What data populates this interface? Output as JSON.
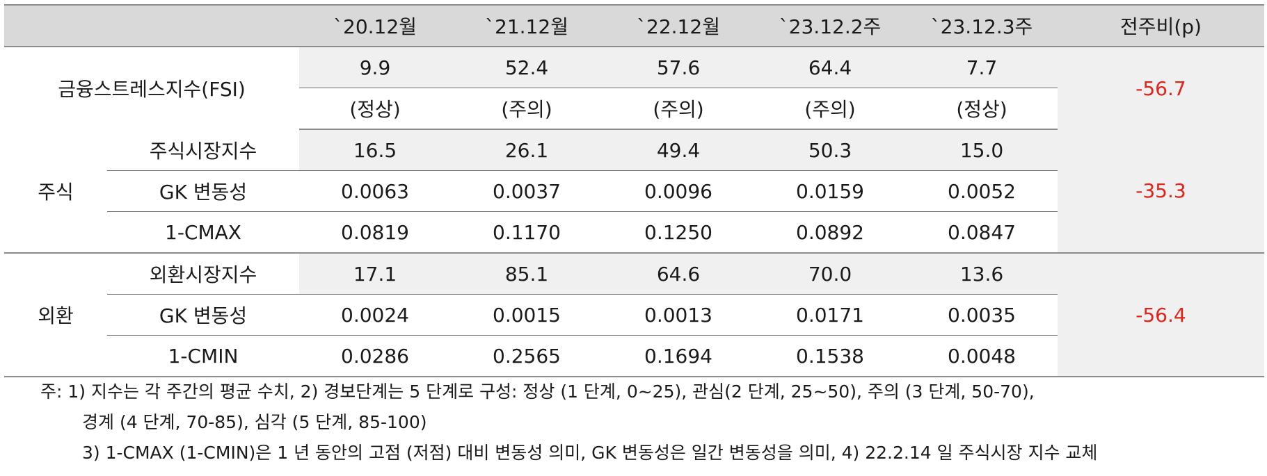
{
  "header": {
    "blank": "",
    "columns": [
      "`20.12월",
      "`21.12월",
      "`22.12월",
      "`23.12.2주",
      "`23.12.3주"
    ],
    "change": "전주비(p)"
  },
  "fsi": {
    "label": "금융스트레스지수(FSI)",
    "values": [
      "9.9",
      "52.4",
      "57.6",
      "64.4",
      "7.7"
    ],
    "status": [
      "(정상)",
      "(주의)",
      "(주의)",
      "(주의)",
      "(정상)"
    ],
    "change": "-56.7"
  },
  "stock": {
    "group": "주식",
    "change": "-35.3",
    "rows": [
      {
        "label": "주식시장지수",
        "values": [
          "16.5",
          "26.1",
          "49.4",
          "50.3",
          "15.0"
        ]
      },
      {
        "label": "GK 변동성",
        "values": [
          "0.0063",
          "0.0037",
          "0.0096",
          "0.0159",
          "0.0052"
        ]
      },
      {
        "label": "1-CMAX",
        "values": [
          "0.0819",
          "0.1170",
          "0.1250",
          "0.0892",
          "0.0847"
        ]
      }
    ]
  },
  "fx": {
    "group": "외환",
    "change": "-56.4",
    "rows": [
      {
        "label": "외환시장지수",
        "values": [
          "17.1",
          "85.1",
          "64.6",
          "70.0",
          "13.6"
        ]
      },
      {
        "label": "GK 변동성",
        "values": [
          "0.0024",
          "0.0015",
          "0.0013",
          "0.0171",
          "0.0035"
        ]
      },
      {
        "label": "1-CMIN",
        "values": [
          "0.0286",
          "0.2565",
          "0.1694",
          "0.1538",
          "0.0048"
        ]
      }
    ]
  },
  "notes": {
    "line1": "주: 1) 지수는 각 주간의 평균 수치, 2) 경보단계는 5 단계로 구성: 정상 (1 단계, 0~25), 관심(2 단계, 25~50), 주의 (3 단계, 50-70),",
    "line2": "경계 (4 단계, 70-85), 심각 (5 단계, 85-100)",
    "line3": "3) 1-CMAX (1-CMIN)은 1 년 동안의 고점 (저점) 대비 변동성 의미, GK 변동성은 일간 변동성을 의미, 4) 22.2.14 일 주식시장 지수 교체"
  }
}
